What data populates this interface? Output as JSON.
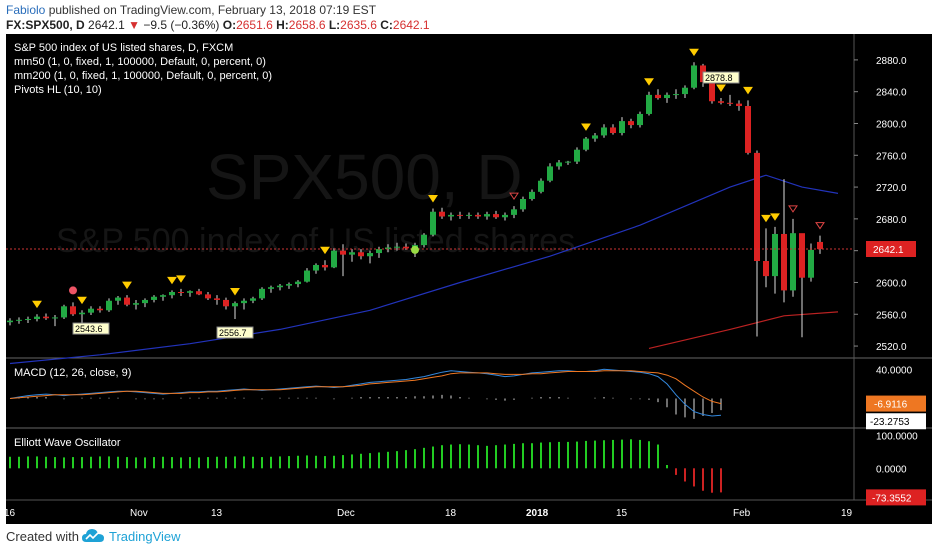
{
  "header": {
    "author": "Fabiolo",
    "published": "published on TradingView.com, February 13, 2018 07:19 EST",
    "symbol": "FX:SPX500, D",
    "last": "2642.1",
    "change": "−9.5 (−0.36%)",
    "o_label": "O:",
    "o_value": "2651.6",
    "h_label": "H:",
    "h_value": "2658.6",
    "l_label": "L:",
    "l_value": "2635.6",
    "c_label": "C:",
    "c_value": "2642.1"
  },
  "legend": {
    "title": "S&P 500 index of US listed shares, D, FXCM",
    "line1": "mm50 (1, 0, fixed, 1, 100000, Default, 0, percent, 0)",
    "line2": "mm200 (1, 0, fixed, 1, 100000, Default, 0, percent, 0)",
    "line3": "Pivots HL (10, 10)"
  },
  "watermark": {
    "main": "SPX500, D",
    "sub": "S&P 500 index of US listed shares"
  },
  "colors": {
    "background": "#000000",
    "up": "#22aa44",
    "down": "#dd2222",
    "ma50": "#2233bb",
    "ma200": "#bb2222",
    "pivot_marker": "#ffcc00",
    "macd_line": "#3388dd",
    "signal_line": "#ee7722",
    "ewo_pos": "#22cc22",
    "ewo_neg": "#cc2222"
  },
  "chart_data": [
    {
      "type": "candlestick",
      "title": "S&P 500 index of US listed shares, D, FXCM",
      "ylim": [
        2510,
        2900
      ],
      "y_ticks": [
        "2880.0",
        "2840.0",
        "2800.0",
        "2760.0",
        "2720.0",
        "2680.0",
        "2640.0",
        "2600.0",
        "2560.0",
        "2520.0"
      ],
      "x_ticks": [
        "16",
        "Nov",
        "13",
        "Dec",
        "18",
        "2018",
        "15",
        "Feb",
        "19"
      ],
      "last_price_label": "2642.1",
      "candles": [
        [
          2550,
          2555,
          2546,
          2552
        ],
        [
          2552,
          2556,
          2548,
          2553
        ],
        [
          2553,
          2557,
          2549,
          2554
        ],
        [
          2554,
          2560,
          2551,
          2557
        ],
        [
          2557,
          2561,
          2553,
          2555
        ],
        [
          2555,
          2559,
          2545,
          2556
        ],
        [
          2556,
          2572,
          2554,
          2570
        ],
        [
          2570,
          2575,
          2558,
          2560
        ],
        [
          2560,
          2565,
          2547,
          2562
        ],
        [
          2562,
          2570,
          2559,
          2567
        ],
        [
          2567,
          2570,
          2562,
          2565
        ],
        [
          2565,
          2580,
          2563,
          2577
        ],
        [
          2577,
          2583,
          2572,
          2581
        ],
        [
          2581,
          2584,
          2570,
          2572
        ],
        [
          2572,
          2578,
          2566,
          2574
        ],
        [
          2574,
          2580,
          2569,
          2578
        ],
        [
          2578,
          2584,
          2575,
          2582
        ],
        [
          2582,
          2585,
          2577,
          2584
        ],
        [
          2584,
          2590,
          2580,
          2588
        ],
        [
          2588,
          2592,
          2583,
          2587
        ],
        [
          2587,
          2590,
          2582,
          2589
        ],
        [
          2589,
          2592,
          2584,
          2585
        ],
        [
          2585,
          2588,
          2578,
          2580
        ],
        [
          2580,
          2584,
          2572,
          2578
        ],
        [
          2578,
          2581,
          2566,
          2570
        ],
        [
          2570,
          2576,
          2554,
          2574
        ],
        [
          2574,
          2580,
          2566,
          2577
        ],
        [
          2577,
          2582,
          2574,
          2580
        ],
        [
          2580,
          2594,
          2578,
          2592
        ],
        [
          2592,
          2596,
          2587,
          2594
        ],
        [
          2594,
          2598,
          2590,
          2596
        ],
        [
          2596,
          2600,
          2592,
          2598
        ],
        [
          2598,
          2603,
          2594,
          2601
        ],
        [
          2601,
          2618,
          2600,
          2615
        ],
        [
          2615,
          2624,
          2611,
          2622
        ],
        [
          2622,
          2628,
          2615,
          2619
        ],
        [
          2619,
          2643,
          2618,
          2640
        ],
        [
          2640,
          2648,
          2608,
          2635
        ],
        [
          2635,
          2642,
          2626,
          2638
        ],
        [
          2638,
          2642,
          2629,
          2633
        ],
        [
          2633,
          2640,
          2624,
          2637
        ],
        [
          2637,
          2645,
          2631,
          2642
        ],
        [
          2642,
          2648,
          2638,
          2644
        ],
        [
          2644,
          2650,
          2640,
          2645
        ],
        [
          2645,
          2649,
          2641,
          2643
        ],
        [
          2643,
          2650,
          2632,
          2647
        ],
        [
          2647,
          2662,
          2644,
          2660
        ],
        [
          2660,
          2693,
          2658,
          2689
        ],
        [
          2689,
          2694,
          2680,
          2683
        ],
        [
          2683,
          2688,
          2678,
          2685
        ],
        [
          2685,
          2689,
          2680,
          2684
        ],
        [
          2684,
          2688,
          2680,
          2685
        ],
        [
          2685,
          2688,
          2680,
          2683
        ],
        [
          2683,
          2689,
          2679,
          2686
        ],
        [
          2686,
          2690,
          2680,
          2682
        ],
        [
          2682,
          2688,
          2678,
          2685
        ],
        [
          2685,
          2696,
          2681,
          2692
        ],
        [
          2692,
          2708,
          2689,
          2705
        ],
        [
          2705,
          2717,
          2703,
          2714
        ],
        [
          2714,
          2731,
          2712,
          2728
        ],
        [
          2728,
          2750,
          2726,
          2746
        ],
        [
          2746,
          2754,
          2742,
          2751
        ],
        [
          2751,
          2753,
          2748,
          2752
        ],
        [
          2752,
          2770,
          2749,
          2767
        ],
        [
          2767,
          2783,
          2765,
          2781
        ],
        [
          2781,
          2788,
          2777,
          2785
        ],
        [
          2785,
          2799,
          2782,
          2795
        ],
        [
          2795,
          2799,
          2786,
          2788
        ],
        [
          2788,
          2808,
          2785,
          2803
        ],
        [
          2803,
          2806,
          2794,
          2798
        ],
        [
          2798,
          2815,
          2795,
          2812
        ],
        [
          2812,
          2840,
          2810,
          2836
        ],
        [
          2836,
          2843,
          2830,
          2832
        ],
        [
          2832,
          2839,
          2826,
          2836
        ],
        [
          2836,
          2843,
          2831,
          2837
        ],
        [
          2837,
          2848,
          2832,
          2845
        ],
        [
          2845,
          2877,
          2843,
          2873
        ],
        [
          2873,
          2875,
          2846,
          2852
        ],
        [
          2852,
          2856,
          2825,
          2828
        ],
        [
          2828,
          2832,
          2824,
          2826
        ],
        [
          2826,
          2836,
          2822,
          2825
        ],
        [
          2825,
          2829,
          2816,
          2822
        ],
        [
          2822,
          2829,
          2761,
          2763
        ],
        [
          2763,
          2766,
          2532,
          2627
        ],
        [
          2627,
          2668,
          2594,
          2608
        ],
        [
          2608,
          2670,
          2586,
          2661
        ],
        [
          2661,
          2730,
          2575,
          2590
        ],
        [
          2590,
          2680,
          2582,
          2662
        ],
        [
          2662,
          2660,
          2531,
          2606
        ],
        [
          2606,
          2649,
          2601,
          2641
        ],
        [
          2651,
          2659,
          2636,
          2642
        ]
      ],
      "ma50": [
        [
          0,
          2498
        ],
        [
          10,
          2509
        ],
        [
          20,
          2523
        ],
        [
          30,
          2541
        ],
        [
          40,
          2565
        ],
        [
          50,
          2600
        ],
        [
          60,
          2633
        ],
        [
          70,
          2672
        ],
        [
          80,
          2720
        ],
        [
          84,
          2735
        ],
        [
          88,
          2720
        ],
        [
          92,
          2712
        ]
      ],
      "ma200": [
        [
          71,
          2517
        ],
        [
          80,
          2541
        ],
        [
          86,
          2558
        ],
        [
          92,
          2563
        ]
      ],
      "pivots": [
        {
          "kind": "high",
          "x": 3,
          "filled": true
        },
        {
          "kind": "high",
          "x": 8,
          "filled": true
        },
        {
          "kind": "high",
          "x": 13,
          "filled": true
        },
        {
          "kind": "high",
          "x": 18,
          "filled": true
        },
        {
          "kind": "high",
          "x": 19,
          "filled": true
        },
        {
          "kind": "high",
          "x": 25,
          "filled": true
        },
        {
          "kind": "high",
          "x": 35,
          "filled": true
        },
        {
          "kind": "high",
          "x": 47,
          "filled": true
        },
        {
          "kind": "high",
          "x": 64,
          "filled": true
        },
        {
          "kind": "high",
          "x": 71,
          "filled": true
        },
        {
          "kind": "high",
          "x": 76,
          "filled": true
        },
        {
          "kind": "high",
          "x": 82,
          "filled": true
        },
        {
          "kind": "high",
          "x": 84,
          "filled": true
        },
        {
          "kind": "high",
          "x": 85,
          "filled": true
        },
        {
          "kind": "high",
          "x": 87,
          "filled": false
        },
        {
          "kind": "high",
          "x": 90,
          "filled": false
        },
        {
          "kind": "high",
          "x": 56,
          "filled": false
        },
        {
          "kind": "high",
          "x": 79,
          "label": "2878.8",
          "filled": true
        }
      ],
      "pivot_lows": [
        {
          "x": 9,
          "label": "2543.6"
        },
        {
          "x": 25,
          "label": "2556.7"
        }
      ]
    },
    {
      "type": "line",
      "title": "MACD (12, 26, close, 9)",
      "ylim": [
        -35,
        50
      ],
      "y_ticks": [
        "40.0000"
      ],
      "value_labels": [
        "-6.9116",
        "-23.2753"
      ],
      "macd": [
        0,
        2,
        4,
        5,
        6,
        5,
        4,
        5,
        6,
        7,
        8,
        9,
        10,
        10,
        9,
        8,
        7,
        6,
        7,
        8,
        9,
        9,
        10,
        10,
        11,
        12,
        13,
        12,
        11,
        12,
        13,
        14,
        15,
        16,
        17,
        16,
        15,
        16,
        18,
        20,
        22,
        23,
        24,
        25,
        26,
        28,
        30,
        33,
        36,
        38,
        37,
        36,
        35,
        34,
        32,
        30,
        31,
        33,
        35,
        36,
        37,
        38,
        38,
        37,
        37,
        38,
        40,
        39,
        38,
        37,
        36,
        34,
        30,
        20,
        5,
        -8,
        -18,
        -22,
        -24,
        -23
      ],
      "signal": [
        0,
        1,
        2,
        3,
        4,
        5,
        5,
        5,
        5,
        6,
        7,
        8,
        9,
        10,
        10,
        9,
        8,
        7,
        7,
        7,
        8,
        8,
        9,
        9,
        10,
        11,
        12,
        12,
        12,
        12,
        12,
        13,
        14,
        15,
        16,
        16,
        16,
        16,
        17,
        18,
        20,
        21,
        22,
        23,
        24,
        25,
        27,
        29,
        31,
        34,
        35,
        35,
        35,
        35,
        34,
        33,
        33,
        33,
        34,
        34,
        35,
        36,
        37,
        37,
        37,
        37,
        38,
        38,
        38,
        38,
        37,
        36,
        35,
        32,
        27,
        18,
        10,
        2,
        -4,
        -7
      ],
      "histogram": [
        0,
        1,
        2,
        2,
        2,
        0,
        -1,
        0,
        1,
        1,
        1,
        1,
        1,
        0,
        -1,
        -1,
        -1,
        -1,
        0,
        1,
        1,
        1,
        1,
        1,
        1,
        1,
        1,
        0,
        -1,
        0,
        1,
        1,
        1,
        1,
        1,
        0,
        -1,
        0,
        1,
        2,
        2,
        2,
        2,
        2,
        2,
        3,
        3,
        4,
        5,
        4,
        2,
        1,
        0,
        -1,
        -2,
        -3,
        -2,
        0,
        1,
        2,
        2,
        2,
        1,
        0,
        0,
        1,
        2,
        1,
        0,
        -1,
        -1,
        -2,
        -5,
        -12,
        -22,
        -26,
        -28,
        -24,
        -20,
        -16
      ]
    },
    {
      "type": "bar",
      "title": "Elliott Wave Oscillator",
      "ylim": [
        -90,
        110
      ],
      "y_ticks": [
        "100.0000",
        "0.0000"
      ],
      "value_labels": [
        "-73.3552"
      ],
      "values": [
        35,
        35,
        36,
        36,
        35,
        34,
        33,
        34,
        34,
        35,
        36,
        36,
        35,
        34,
        33,
        33,
        34,
        35,
        34,
        33,
        34,
        33,
        34,
        35,
        35,
        36,
        36,
        35,
        34,
        35,
        36,
        37,
        38,
        39,
        38,
        37,
        38,
        40,
        42,
        44,
        46,
        48,
        50,
        52,
        55,
        58,
        62,
        66,
        70,
        72,
        73,
        72,
        70,
        68,
        70,
        72,
        74,
        76,
        76,
        78,
        79,
        80,
        80,
        81,
        83,
        84,
        85,
        86,
        87,
        88,
        86,
        82,
        72,
        10,
        -20,
        -40,
        -55,
        -68,
        -74,
        -73
      ]
    }
  ],
  "footer": {
    "created": "Created with",
    "brand": "TradingView"
  }
}
